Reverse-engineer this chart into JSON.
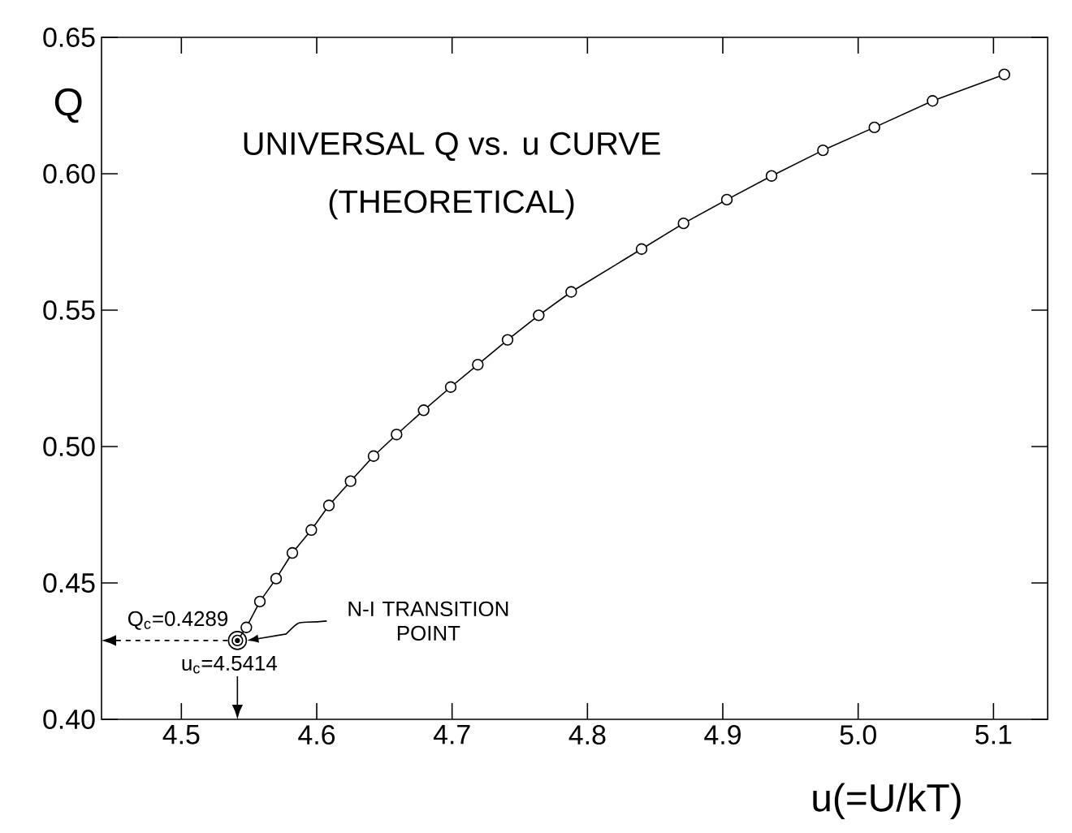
{
  "chart_data": {
    "type": "line",
    "title": "UNIVERSAL Q vs. u CURVE",
    "subtitle": "(THEORETICAL)",
    "xlabel": "u(=U/kT)",
    "ylabel": "Q",
    "x": [
      4.5414,
      4.548,
      4.558,
      4.57,
      4.582,
      4.596,
      4.609,
      4.625,
      4.642,
      4.659,
      4.679,
      4.699,
      4.719,
      4.741,
      4.764,
      4.788,
      4.84,
      4.871,
      4.903,
      4.936,
      4.974,
      5.012,
      5.055,
      5.108
    ],
    "series": [
      {
        "color": "#000000",
        "values": [
          0.4289,
          0.4337,
          0.4432,
          0.4516,
          0.461,
          0.4694,
          0.4784,
          0.4873,
          0.4965,
          0.5044,
          0.5133,
          0.5218,
          0.53,
          0.5391,
          0.5481,
          0.5567,
          0.5724,
          0.5818,
          0.5905,
          0.5992,
          0.6086,
          0.617,
          0.6267,
          0.6364
        ]
      }
    ],
    "xlim": [
      4.441,
      5.14
    ],
    "ylim": [
      0.4,
      0.65
    ],
    "xticks": [
      4.5,
      4.6,
      4.7,
      4.8,
      4.9,
      {
        "value": 5.0,
        "label": "5.0"
      },
      5.1
    ],
    "yticks": [
      {
        "value": 0.4,
        "label": "0.40"
      },
      0.45,
      {
        "value": 0.5,
        "label": "0.50"
      },
      0.55,
      {
        "value": 0.6,
        "label": "0.60"
      },
      0.65
    ],
    "marker": "circle",
    "line_style": "solid",
    "annotations": [
      "N-I TRANSITION POINT",
      {
        "text": "Q$_{c}$=0.4289",
        "x": 4.5414,
        "y": 0.4289
      },
      {
        "text": "u$_{c}$=4.5414",
        "x": 4.5414,
        "y": 0.4289
      }
    ]
  }
}
